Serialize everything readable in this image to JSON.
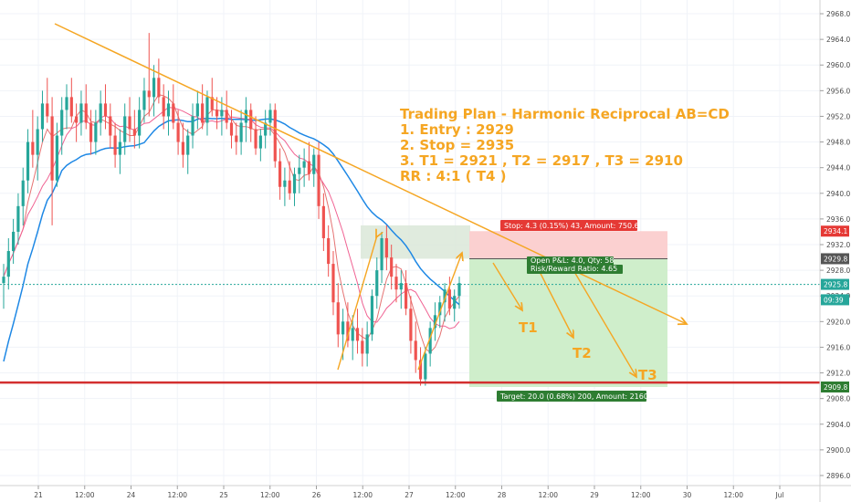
{
  "chart_data": {
    "type": "candlestick",
    "instrument_hint": "",
    "y_axis": {
      "ylim": [
        2895,
        2969
      ],
      "ticks": [
        2896.0,
        2900.0,
        2904.0,
        2908.0,
        2912.0,
        2916.0,
        2920.0,
        2924.0,
        2928.0,
        2932.0,
        2936.0,
        2940.0,
        2944.0,
        2948.0,
        2952.0,
        2956.0,
        2960.0,
        2964.0,
        2968.0
      ],
      "tick_labels": [
        "2896.0",
        "2900.0",
        "2904.0",
        "2908.0",
        "2912.0",
        "2916.0",
        "2920.0",
        "2924.0",
        "2928.0",
        "2932.0",
        "2936.0",
        "2940.0",
        "2944.0",
        "2948.0",
        "2952.0",
        "2956.0",
        "2960.0",
        "2964.0",
        "2968.0"
      ]
    },
    "x_axis": {
      "ticks": [
        "21",
        "12:00",
        "24",
        "12:00",
        "25",
        "12:00",
        "26",
        "12:00",
        "27",
        "12:00",
        "28",
        "12:00",
        "29",
        "12:00",
        "30",
        "12:00",
        "Jul"
      ]
    },
    "price_tags": [
      {
        "label": "2934.1",
        "value": 2934.1,
        "color": "#e53935"
      },
      {
        "label": "2929.8",
        "value": 2929.8,
        "color": "#555555"
      },
      {
        "label": "2925.8",
        "value": 2925.8,
        "color": "#26a69a"
      },
      {
        "label": "09:39",
        "value": 2923.4,
        "color": "#26a69a"
      },
      {
        "label": "2909.8",
        "value": 2909.8,
        "color": "#2e7d32"
      }
    ],
    "trading_plan": {
      "title": "Trading Plan - Harmonic Reciprocal AB=CD",
      "lines": [
        "1. Entry : 2929",
        "2. Stop = 2935",
        "3. T1 = 2921 , T2 = 2917 , T3 = 2910",
        "RR : 4:1 ( T4 )"
      ]
    },
    "position": {
      "entry": 2929.8,
      "stop": 2934.1,
      "target": 2909.8,
      "stop_label": "Stop: 4.3 (0.15%) 43, Amount: 750.6",
      "open_pnl_label": "Open P&L: 4.0, Qty: 58",
      "rr_label": "Risk/Reward Ratio: 4.65",
      "target_label": "Target: 20.0 (0.68%) 200, Amount: 2160"
    },
    "targets": [
      {
        "label": "T1",
        "value": 2921
      },
      {
        "label": "T2",
        "value": 2917
      },
      {
        "label": "T3",
        "value": 2910
      }
    ],
    "support_level": 2910.5,
    "colors": {
      "up": "#26a69a",
      "down": "#ef5350",
      "trend": "#f5a623",
      "ma_slow": "#1e88e5",
      "ma_fast": "#e57373",
      "support": "#d32f2f",
      "stop_zone": "#fbd0d0",
      "profit_zone": "#cfeecb",
      "pattern_zone": "#dbe8d8"
    },
    "candles": [
      [
        2926,
        2929,
        2922,
        2927
      ],
      [
        2927,
        2933,
        2925,
        2931
      ],
      [
        2931,
        2936,
        2929,
        2934
      ],
      [
        2934,
        2940,
        2932,
        2938
      ],
      [
        2938,
        2944,
        2935,
        2942
      ],
      [
        2942,
        2950,
        2940,
        2948
      ],
      [
        2948,
        2953,
        2944,
        2946
      ],
      [
        2946,
        2952,
        2942,
        2950
      ],
      [
        2950,
        2956,
        2948,
        2954
      ],
      [
        2954,
        2958,
        2951,
        2952
      ],
      [
        2952,
        2955,
        2935,
        2942
      ],
      [
        2942,
        2951,
        2941,
        2949
      ],
      [
        2949,
        2955,
        2946,
        2953
      ],
      [
        2953,
        2957,
        2950,
        2955
      ],
      [
        2955,
        2958,
        2951,
        2952
      ],
      [
        2952,
        2954,
        2948,
        2951
      ],
      [
        2951,
        2956,
        2949,
        2954
      ],
      [
        2954,
        2957,
        2950,
        2951
      ],
      [
        2951,
        2953,
        2946,
        2948
      ],
      [
        2948,
        2953,
        2946,
        2951
      ],
      [
        2951,
        2956,
        2949,
        2954
      ],
      [
        2954,
        2957,
        2950,
        2952
      ],
      [
        2952,
        2954,
        2947,
        2949
      ],
      [
        2949,
        2951,
        2944,
        2946
      ],
      [
        2946,
        2950,
        2943,
        2948
      ],
      [
        2948,
        2954,
        2946,
        2952
      ],
      [
        2952,
        2955,
        2948,
        2950
      ],
      [
        2950,
        2953,
        2947,
        2949
      ],
      [
        2949,
        2955,
        2947,
        2953
      ],
      [
        2953,
        2958,
        2951,
        2956
      ],
      [
        2956,
        2965,
        2952,
        2955
      ],
      [
        2955,
        2960,
        2952,
        2958
      ],
      [
        2958,
        2961,
        2954,
        2955
      ],
      [
        2955,
        2957,
        2950,
        2952
      ],
      [
        2952,
        2956,
        2949,
        2954
      ],
      [
        2954,
        2957,
        2950,
        2951
      ],
      [
        2951,
        2953,
        2946,
        2948
      ],
      [
        2948,
        2951,
        2944,
        2946
      ],
      [
        2946,
        2950,
        2943,
        2949
      ],
      [
        2949,
        2954,
        2947,
        2952
      ],
      [
        2952,
        2956,
        2950,
        2954
      ],
      [
        2954,
        2957,
        2950,
        2951
      ],
      [
        2951,
        2956,
        2949,
        2955
      ],
      [
        2955,
        2958,
        2952,
        2953
      ],
      [
        2953,
        2955,
        2950,
        2952
      ],
      [
        2952,
        2955,
        2949,
        2953
      ],
      [
        2953,
        2956,
        2950,
        2951
      ],
      [
        2951,
        2953,
        2947,
        2949
      ],
      [
        2949,
        2951,
        2946,
        2948
      ],
      [
        2948,
        2953,
        2946,
        2951
      ],
      [
        2951,
        2955,
        2948,
        2953
      ],
      [
        2953,
        2954,
        2948,
        2950
      ],
      [
        2950,
        2952,
        2946,
        2947
      ],
      [
        2947,
        2950,
        2945,
        2949
      ],
      [
        2949,
        2953,
        2947,
        2951
      ],
      [
        2951,
        2954,
        2949,
        2953
      ],
      [
        2953,
        2954,
        2944,
        2945
      ],
      [
        2945,
        2947,
        2939,
        2941
      ],
      [
        2941,
        2944,
        2938,
        2942
      ],
      [
        2942,
        2945,
        2939,
        2940
      ],
      [
        2940,
        2944,
        2938,
        2943
      ],
      [
        2943,
        2946,
        2940,
        2944
      ],
      [
        2944,
        2947,
        2941,
        2945
      ],
      [
        2945,
        2948,
        2942,
        2943
      ],
      [
        2943,
        2947,
        2941,
        2946
      ],
      [
        2946,
        2948,
        2936,
        2938
      ],
      [
        2938,
        2940,
        2931,
        2933
      ],
      [
        2933,
        2935,
        2927,
        2929
      ],
      [
        2929,
        2931,
        2921,
        2923
      ],
      [
        2923,
        2926,
        2916,
        2918
      ],
      [
        2918,
        2922,
        2914,
        2920
      ],
      [
        2920,
        2923,
        2916,
        2917
      ],
      [
        2917,
        2921,
        2914,
        2919
      ],
      [
        2919,
        2922,
        2915,
        2917
      ],
      [
        2917,
        2919,
        2913,
        2915
      ],
      [
        2915,
        2920,
        2913,
        2918
      ],
      [
        2918,
        2925,
        2917,
        2924
      ],
      [
        2924,
        2930,
        2922,
        2928
      ],
      [
        2928,
        2934,
        2926,
        2933
      ],
      [
        2933,
        2935,
        2928,
        2930
      ],
      [
        2930,
        2932,
        2925,
        2927
      ],
      [
        2927,
        2929,
        2923,
        2925
      ],
      [
        2925,
        2928,
        2922,
        2926
      ],
      [
        2926,
        2928,
        2921,
        2922
      ],
      [
        2922,
        2924,
        2915,
        2917
      ],
      [
        2917,
        2920,
        2912,
        2914
      ],
      [
        2914,
        2916,
        2910,
        2911
      ],
      [
        2911,
        2916,
        2910,
        2915
      ],
      [
        2915,
        2920,
        2913,
        2919
      ],
      [
        2919,
        2923,
        2917,
        2921
      ],
      [
        2921,
        2924,
        2919,
        2923
      ],
      [
        2923,
        2926,
        2920,
        2925
      ],
      [
        2925,
        2927,
        2921,
        2922
      ],
      [
        2922,
        2925,
        2920,
        2924
      ],
      [
        2924,
        2927,
        2922,
        2926
      ]
    ]
  }
}
